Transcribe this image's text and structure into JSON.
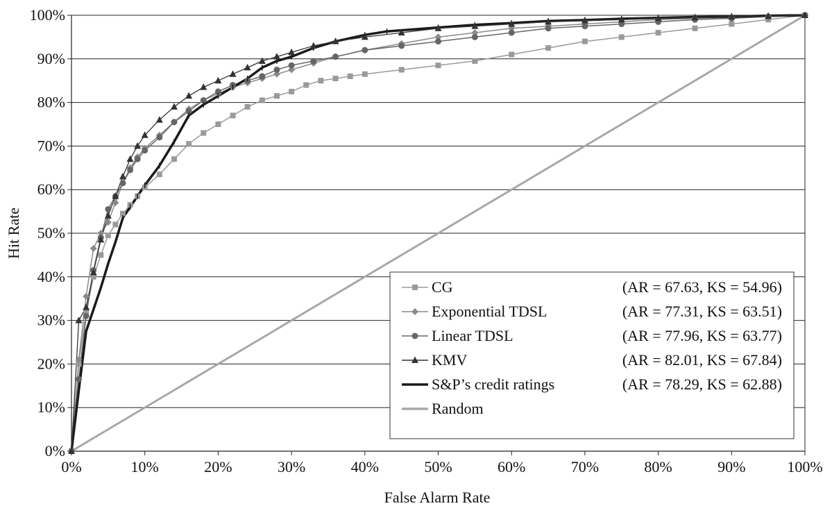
{
  "chart_data": {
    "type": "line",
    "title": "",
    "xlabel": "False Alarm Rate",
    "ylabel": "Hit Rate",
    "xlim": [
      0,
      100
    ],
    "ylim": [
      0,
      100
    ],
    "x_ticks": [
      "0%",
      "10%",
      "20%",
      "30%",
      "40%",
      "50%",
      "60%",
      "70%",
      "80%",
      "90%",
      "100%"
    ],
    "y_ticks": [
      "0%",
      "10%",
      "20%",
      "30%",
      "40%",
      "50%",
      "60%",
      "70%",
      "80%",
      "90%",
      "100%"
    ],
    "grid": "horizontal",
    "legend_position": "bottom-right",
    "series": [
      {
        "name": "CG",
        "stats": "(AR = 67.63, KS = 54.96)",
        "color": "#9a9a9a",
        "marker": "square",
        "x": [
          0,
          1,
          2,
          3,
          4,
          5,
          6,
          7,
          8,
          9,
          10,
          12,
          14,
          16,
          18,
          20,
          22,
          24,
          26,
          28,
          30,
          32,
          34,
          36,
          38,
          40,
          45,
          50,
          55,
          60,
          65,
          70,
          75,
          80,
          85,
          90,
          95,
          100
        ],
        "y": [
          0,
          20,
          32,
          40,
          45,
          49.5,
          52,
          54.5,
          56.5,
          58.5,
          60.5,
          63.5,
          67,
          70.5,
          73,
          75,
          77,
          79,
          80.5,
          81.5,
          82.5,
          84,
          85,
          85.5,
          86,
          86.5,
          87.5,
          88.5,
          89.5,
          91,
          92.5,
          94,
          95,
          96,
          97,
          98,
          99,
          100
        ]
      },
      {
        "name": "Exponential TDSL",
        "stats": "(AR = 77.31, KS = 63.51)",
        "color": "#8a8a8a",
        "marker": "diamond",
        "x": [
          0,
          1,
          2,
          3,
          4,
          5,
          6,
          7,
          8,
          9,
          10,
          12,
          14,
          16,
          18,
          20,
          22,
          24,
          26,
          28,
          30,
          33,
          36,
          40,
          45,
          50,
          55,
          60,
          65,
          70,
          75,
          80,
          85,
          90,
          95,
          100
        ],
        "y": [
          0,
          21,
          35.5,
          46.5,
          50,
          52.5,
          57,
          61.5,
          65,
          67.5,
          69.5,
          72.5,
          75.5,
          78.5,
          80.5,
          82,
          83.5,
          84.5,
          85.5,
          86.5,
          87.5,
          89,
          90.5,
          92,
          93.5,
          95,
          96,
          97,
          97.5,
          98,
          98.5,
          99,
          99.3,
          99.5,
          99.7,
          100
        ]
      },
      {
        "name": "Linear TDSL",
        "stats": "(AR = 77.96, KS = 63.77)",
        "color": "#666666",
        "marker": "circle",
        "x": [
          0,
          1,
          2,
          3,
          4,
          5,
          6,
          7,
          8,
          9,
          10,
          12,
          14,
          16,
          18,
          20,
          22,
          24,
          26,
          28,
          30,
          33,
          36,
          40,
          45,
          50,
          55,
          60,
          65,
          70,
          75,
          80,
          85,
          90,
          95,
          100
        ],
        "y": [
          0,
          16.5,
          31,
          41.5,
          49,
          55.5,
          58.5,
          61.5,
          64.5,
          67,
          69,
          72,
          75.5,
          78,
          80.5,
          82.5,
          84,
          85,
          86,
          87.5,
          88.5,
          89.5,
          90.5,
          92,
          93,
          94,
          95,
          96,
          97,
          97.5,
          98,
          98.5,
          99,
          99.3,
          99.7,
          100
        ]
      },
      {
        "name": "KMV",
        "stats": "(AR = 82.01, KS = 67.84)",
        "color": "#333333",
        "marker": "triangle",
        "x": [
          0,
          1,
          2,
          3,
          4,
          5,
          6,
          7,
          8,
          9,
          10,
          12,
          14,
          16,
          18,
          20,
          22,
          24,
          26,
          28,
          30,
          33,
          36,
          40,
          45,
          50,
          55,
          60,
          65,
          70,
          75,
          80,
          85,
          90,
          95,
          100
        ],
        "y": [
          0,
          30,
          33,
          41,
          48.5,
          54,
          58.5,
          63,
          67,
          70,
          72.5,
          76,
          79,
          81.5,
          83.5,
          85,
          86.5,
          88,
          89.5,
          90.5,
          91.5,
          93,
          94,
          95,
          96,
          97,
          97.5,
          98,
          98.5,
          98.8,
          99,
          99.3,
          99.5,
          99.7,
          99.8,
          100
        ]
      },
      {
        "name": "S&P’s credit ratings",
        "stats": "(AR = 78.29, KS = 62.88)",
        "color": "#1a1a1a",
        "marker": "tick",
        "x": [
          0,
          1,
          2,
          3,
          4,
          5,
          6,
          7,
          8,
          9,
          10,
          12,
          14,
          16,
          18,
          20,
          22,
          24,
          26,
          28,
          30,
          33,
          36,
          40,
          43,
          50,
          55,
          60,
          65,
          70,
          75,
          80,
          85,
          90,
          95,
          100
        ],
        "y": [
          0,
          14,
          27.5,
          32.5,
          37.5,
          43,
          48,
          53.5,
          56,
          58.5,
          61,
          65.5,
          71,
          77,
          79.5,
          81.5,
          83.5,
          85.5,
          88,
          89.5,
          90.5,
          92.5,
          94,
          95.5,
          96.3,
          97.2,
          97.8,
          98.2,
          98.7,
          98.9,
          99.2,
          99.4,
          99.6,
          99.7,
          99.9,
          100
        ]
      },
      {
        "name": "Random",
        "stats": "",
        "color": "#a8a8a8",
        "marker": "none",
        "x": [
          0,
          100
        ],
        "y": [
          0,
          100
        ]
      }
    ]
  }
}
